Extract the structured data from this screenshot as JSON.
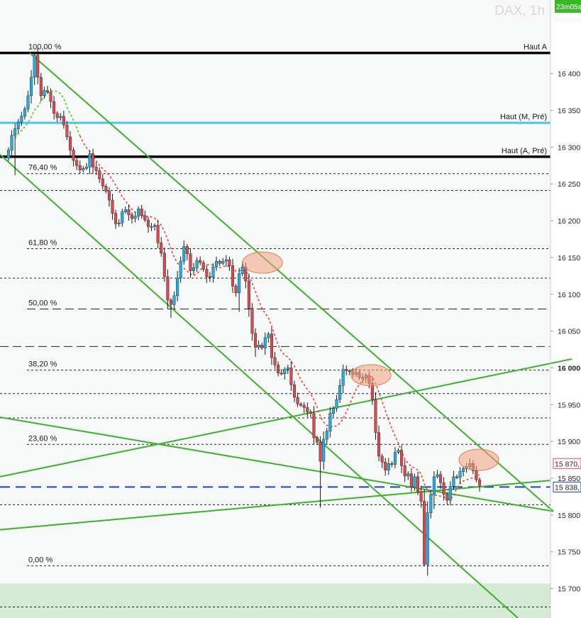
{
  "chart_data": {
    "type": "candlestick",
    "title": "DAX, 1h",
    "timer_badge": "23m05s",
    "colors": {
      "up": "#1eaee8",
      "down": "#e0474c",
      "wick": "#1a1a1a",
      "trendline": "#3bb22a",
      "ma_up": "#7ac943",
      "ma_down": "#e8452a",
      "band": "#d4ead4",
      "background": "#f7f8f8",
      "level_black": "#000000",
      "level_cyan": "#4cc4ec",
      "level_blue": "#1f3fd6",
      "current_price": "#e04848",
      "highlight": "#f4a07e"
    },
    "y_axis": {
      "min": 15660,
      "max": 16500,
      "tick_step": 50,
      "ticks": [
        "16 400",
        "16 350",
        "16 300",
        "16 250",
        "16 200",
        "16 150",
        "16 100",
        "16 050",
        "16 000",
        "15 950",
        "15 900",
        "15 850",
        "15 800",
        "15 750",
        "15 700"
      ]
    },
    "fib_levels": [
      {
        "label": "100,00 %",
        "value": 16428
      },
      {
        "label": "76,40 %",
        "value": 16264
      },
      {
        "label": "61,80 %",
        "value": 16162
      },
      {
        "label": "50,00 %",
        "value": 16080
      },
      {
        "label": "38,20 %",
        "value": 15997
      },
      {
        "label": "23,60 %",
        "value": 15896
      },
      {
        "label": "0,00 %",
        "value": 15731
      }
    ],
    "extra_dashed_levels": [
      16241,
      16122,
      16029,
      15965,
      15932,
      15814,
      15675
    ],
    "key_levels": [
      {
        "label": "Haut A",
        "value": 16428,
        "style": "black"
      },
      {
        "label": "Haut (M, Pré)",
        "value": 16333,
        "style": "cyan"
      },
      {
        "label": "Haut (A, Pré)",
        "value": 16287,
        "style": "black"
      },
      {
        "label": "",
        "value": 15838,
        "style": "blue-dashed"
      }
    ],
    "price_tags": [
      {
        "label": "15 870,",
        "value": 15870,
        "style": "red"
      },
      {
        "label": "15 838,",
        "value": 15838,
        "style": "blue"
      }
    ],
    "support_band": {
      "from": 15660,
      "to": 15707
    },
    "closes": [
      16296,
      16316,
      16325,
      16334,
      16342,
      16352,
      16370,
      16395,
      16425,
      16395,
      16370,
      16377,
      16375,
      16362,
      16346,
      16340,
      16342,
      16330,
      16314,
      16296,
      16282,
      16275,
      16269,
      16271,
      16273,
      16291,
      16273,
      16268,
      16257,
      16247,
      16240,
      16228,
      16210,
      16196,
      16197,
      16212,
      16215,
      16208,
      16203,
      16206,
      16216,
      16207,
      16201,
      16192,
      16192,
      16194,
      16170,
      16156,
      16124,
      16092,
      16086,
      16098,
      16122,
      16145,
      16165,
      16155,
      16132,
      16136,
      16146,
      16143,
      16134,
      16124,
      16123,
      16137,
      16145,
      16142,
      16145,
      16147,
      16139,
      16111,
      16102,
      16128,
      16137,
      16118,
      16081,
      16047,
      16028,
      16031,
      16027,
      16041,
      16046,
      16014,
      16004,
      15993,
      15992,
      15998,
      16000,
      15977,
      15960,
      15951,
      15949,
      15946,
      15940,
      15938,
      15905,
      15899,
      15873,
      15903,
      15914,
      15938,
      15945,
      15957,
      15976,
      15998,
      15996,
      15995,
      15991,
      15994,
      15987,
      15986,
      15990,
      15979,
      15957,
      15912,
      15880,
      15872,
      15861,
      15870,
      15869,
      15885,
      15888,
      15867,
      15853,
      15856,
      15838,
      15852,
      15832,
      15819,
      15733,
      15803,
      15828,
      15852,
      15855,
      15844,
      15828,
      15820,
      15839,
      15852,
      15851,
      15859,
      15863,
      15866,
      15870,
      15860,
      15848,
      15840
    ],
    "trend_lines": [
      {
        "x1": 42,
        "y1": 16428,
        "x2": 780,
        "y2": 15805
      },
      {
        "x1": 0,
        "y1": 16290,
        "x2": 730,
        "y2": 15660
      },
      {
        "x1": 0,
        "y1": 15933,
        "x2": 780,
        "y2": 15805
      },
      {
        "x1": 0,
        "y1": 15852,
        "x2": 806,
        "y2": 16012
      },
      {
        "x1": 0,
        "y1": 15780,
        "x2": 776,
        "y2": 15847
      }
    ],
    "highlight_ellipses": [
      {
        "x": 370,
        "value": 16143
      },
      {
        "x": 523,
        "value": 15990
      },
      {
        "x": 675,
        "value": 15875
      }
    ]
  }
}
